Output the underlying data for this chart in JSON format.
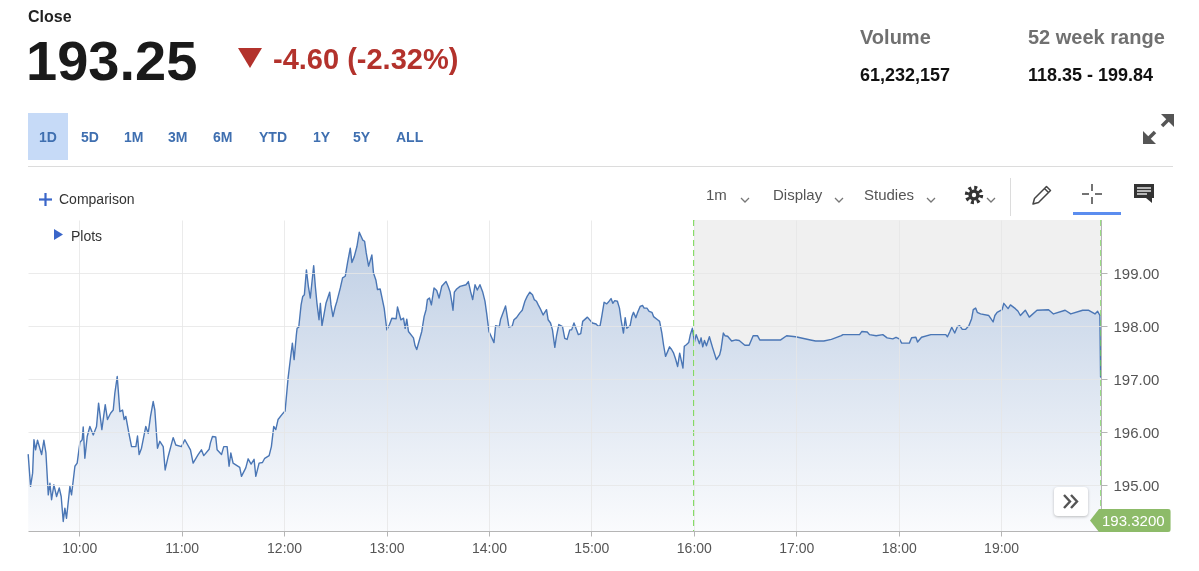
{
  "chart_data": {
    "type": "area",
    "color": "#4a76b5",
    "x": [
      9.502,
      9.525,
      9.545,
      9.558,
      9.574,
      9.593,
      9.633,
      9.655,
      9.675,
      9.698,
      9.714,
      9.73,
      9.753,
      9.779,
      9.805,
      9.824,
      9.844,
      9.86,
      9.876,
      9.909,
      9.925,
      9.958,
      9.98,
      10.007,
      10.029,
      10.039,
      10.055,
      10.078,
      10.104,
      10.137,
      10.169,
      10.189,
      10.221,
      10.254,
      10.276,
      10.306,
      10.332,
      10.348,
      10.371,
      10.397,
      10.423,
      10.439,
      10.455,
      10.488,
      10.511,
      10.553,
      10.569,
      10.585,
      10.608,
      10.65,
      10.673,
      10.696,
      10.722,
      10.738,
      10.764,
      10.787,
      10.82,
      10.839,
      10.868,
      10.917,
      10.943,
      10.998,
      11.031,
      11.086,
      11.112,
      11.161,
      11.193,
      11.216,
      11.268,
      11.281,
      11.301,
      11.333,
      11.346,
      11.389,
      11.411,
      11.444,
      11.463,
      11.48,
      11.502,
      11.567,
      11.584,
      11.626,
      11.649,
      11.678,
      11.707,
      11.724,
      11.756,
      11.789,
      11.811,
      11.854,
      11.876,
      11.899,
      11.919,
      11.941,
      11.99,
      12.01,
      12.039,
      12.062,
      12.081,
      12.098,
      12.12,
      12.127,
      12.143,
      12.166,
      12.182,
      12.198,
      12.218,
      12.237,
      12.256,
      12.289,
      12.305,
      12.321,
      12.341,
      12.354,
      12.37,
      12.386,
      12.409,
      12.445,
      12.458,
      12.477,
      12.5,
      12.516,
      12.549,
      12.571,
      12.597,
      12.62,
      12.646,
      12.662,
      12.685,
      12.711,
      12.734,
      12.769,
      12.786,
      12.802,
      12.825,
      12.857,
      12.873,
      12.896,
      12.912,
      12.938,
      12.977,
      13.003,
      13.029,
      13.052,
      13.094,
      13.107,
      13.14,
      13.166,
      13.182,
      13.198,
      13.214,
      13.263,
      13.279,
      13.295,
      13.321,
      13.344,
      13.367,
      13.386,
      13.399,
      13.419,
      13.438,
      13.464,
      13.49,
      13.513,
      13.539,
      13.581,
      13.601,
      13.62,
      13.636,
      13.649,
      13.662,
      13.685,
      13.718,
      13.776,
      13.799,
      13.821,
      13.841,
      13.864,
      13.886,
      13.912,
      13.938,
      13.961,
      13.977,
      14.0,
      14.049,
      14.065,
      14.101,
      14.114,
      14.162,
      14.195,
      14.227,
      14.244,
      14.269,
      14.302,
      14.325,
      14.351,
      14.373,
      14.399,
      14.425,
      14.442,
      14.464,
      14.481,
      14.503,
      14.529,
      14.562,
      14.578,
      14.601,
      14.62,
      14.643,
      14.659,
      14.682,
      14.718,
      14.74,
      14.763,
      14.789,
      14.807,
      14.83,
      14.873,
      14.896,
      14.915,
      14.961,
      15.01,
      15.046,
      15.065,
      15.085,
      15.101,
      15.124,
      15.15,
      15.173,
      15.192,
      15.209,
      15.228,
      15.254,
      15.274,
      15.29,
      15.313,
      15.33,
      15.346,
      15.378,
      15.395,
      15.411,
      15.434,
      15.45,
      15.476,
      15.499,
      15.515,
      15.542,
      15.564,
      15.591,
      15.607,
      15.646,
      15.666,
      15.688,
      15.705,
      15.724,
      15.744,
      15.763,
      15.783,
      15.803,
      15.822,
      15.842,
      15.862,
      15.894,
      15.907,
      15.927,
      15.95,
      15.966,
      15.986,
      16.006,
      16.023,
      16.055,
      16.071,
      16.087,
      16.104,
      16.123,
      16.152,
      16.184,
      16.22,
      16.252,
      16.265,
      16.288,
      16.304,
      16.33,
      16.369,
      16.411,
      16.443,
      16.498,
      16.54,
      16.579,
      16.621,
      16.644,
      16.686,
      16.848,
      16.906,
      16.994,
      17.139,
      17.188,
      17.269,
      17.343,
      17.44,
      17.456,
      17.618,
      17.641,
      17.693,
      17.715,
      17.78,
      17.845,
      17.887,
      17.942,
      17.974,
      18.006,
      18.029,
      18.104,
      18.126,
      18.168,
      18.184,
      18.223,
      18.314,
      18.379,
      18.46,
      18.476,
      18.498,
      18.518,
      18.547,
      18.573,
      18.595,
      18.621,
      18.654,
      18.686,
      18.712,
      18.728,
      18.751,
      18.767,
      18.799,
      18.88,
      18.922,
      18.939,
      18.961,
      19.01,
      19.026,
      19.068,
      19.091,
      19.139,
      19.165,
      19.188,
      19.236,
      19.275,
      19.35,
      19.463,
      19.511,
      19.625,
      19.68,
      19.796,
      19.851,
      19.916,
      19.942,
      19.964,
      19.971
    ],
    "values": [
      195.58,
      194.98,
      195.23,
      195.86,
      195.67,
      195.85,
      195.58,
      195.85,
      195.61,
      194.82,
      195.04,
      194.73,
      195.01,
      194.79,
      194.95,
      194.79,
      194.32,
      194.57,
      194.38,
      194.98,
      194.82,
      195.36,
      195.42,
      195.81,
      195.86,
      196.1,
      195.51,
      195.92,
      196.11,
      195.95,
      196.11,
      196.55,
      196.05,
      196.52,
      196.24,
      196.36,
      196.42,
      196.74,
      197.05,
      196.39,
      196.42,
      196.24,
      196.3,
      195.95,
      195.73,
      195.73,
      195.93,
      195.58,
      195.7,
      196.11,
      195.98,
      196.3,
      196.58,
      196.42,
      195.7,
      195.83,
      195.73,
      195.29,
      195.54,
      195.9,
      195.76,
      195.73,
      195.86,
      195.67,
      195.42,
      195.58,
      195.67,
      195.56,
      195.68,
      195.8,
      195.92,
      195.91,
      195.67,
      195.58,
      195.73,
      195.73,
      195.36,
      195.61,
      195.42,
      195.34,
      195.17,
      195.33,
      195.5,
      195.4,
      195.49,
      195.17,
      195.42,
      195.43,
      195.51,
      195.56,
      195.73,
      196.11,
      196.05,
      196.24,
      196.36,
      196.4,
      197.02,
      197.39,
      197.68,
      197.37,
      197.84,
      197.96,
      197.98,
      198.4,
      198.56,
      198.59,
      199.06,
      198.75,
      198.53,
      199.14,
      198.75,
      198.43,
      198.12,
      198.43,
      198.01,
      198.18,
      198.43,
      198.64,
      198.4,
      198.18,
      198.37,
      198.47,
      198.72,
      198.91,
      198.94,
      199.2,
      199.47,
      199.2,
      199.31,
      199.5,
      199.77,
      199.62,
      199.6,
      199.38,
      199.13,
      199.34,
      199.0,
      198.87,
      198.69,
      198.7,
      198.34,
      197.93,
      198.03,
      198.15,
      198.14,
      198.36,
      198.12,
      198.15,
      197.96,
      198.13,
      197.9,
      197.78,
      197.63,
      197.56,
      197.74,
      197.9,
      198.18,
      198.31,
      198.5,
      198.53,
      198.4,
      198.72,
      198.67,
      198.53,
      198.75,
      198.84,
      198.75,
      198.65,
      198.47,
      198.3,
      198.64,
      198.7,
      198.75,
      198.78,
      198.84,
      198.65,
      198.5,
      198.78,
      198.68,
      198.78,
      198.65,
      198.47,
      198.25,
      197.9,
      197.69,
      198.01,
      197.99,
      198.13,
      198.38,
      197.98,
      198.0,
      198.12,
      198.16,
      198.25,
      198.3,
      198.47,
      198.56,
      198.64,
      198.59,
      198.5,
      198.47,
      198.4,
      198.32,
      198.21,
      198.31,
      198.12,
      198.06,
      197.93,
      197.6,
      197.81,
      198.03,
      197.99,
      197.77,
      197.75,
      197.93,
      197.93,
      198.06,
      197.84,
      197.86,
      198.09,
      198.17,
      198.06,
      198.04,
      198.0,
      198.01,
      198.18,
      198.45,
      198.42,
      198.47,
      198.52,
      198.43,
      198.48,
      198.47,
      198.34,
      198.12,
      197.87,
      198.16,
      197.96,
      198.01,
      198.18,
      198.26,
      198.16,
      198.25,
      198.37,
      198.39,
      198.34,
      198.34,
      198.28,
      198.26,
      198.18,
      198.12,
      198.09,
      197.87,
      197.64,
      197.43,
      197.52,
      197.61,
      197.56,
      197.49,
      197.38,
      197.24,
      197.49,
      197.21,
      197.62,
      197.65,
      197.69,
      197.84,
      197.96,
      197.7,
      197.84,
      197.67,
      197.78,
      197.61,
      197.73,
      197.63,
      197.8,
      197.59,
      197.37,
      197.46,
      197.56,
      197.87,
      197.82,
      197.81,
      197.72,
      197.74,
      197.73,
      197.64,
      197.64,
      197.82,
      197.82,
      197.74,
      197.74,
      197.74,
      197.82,
      197.8,
      197.74,
      197.72,
      197.72,
      197.75,
      197.82,
      197.84,
      197.84,
      197.9,
      197.89,
      197.84,
      197.82,
      197.84,
      197.78,
      197.76,
      197.79,
      197.76,
      197.68,
      197.68,
      197.78,
      197.79,
      197.7,
      197.79,
      197.84,
      197.84,
      197.84,
      197.8,
      197.89,
      197.98,
      197.87,
      197.99,
      198.01,
      197.94,
      197.94,
      198.01,
      198.14,
      198.31,
      198.34,
      198.26,
      198.23,
      198.2,
      198.08,
      198.2,
      198.26,
      198.31,
      198.43,
      198.33,
      198.4,
      198.33,
      198.28,
      198.2,
      198.3,
      198.17,
      198.3,
      198.31,
      198.23,
      198.3,
      198.23,
      198.3,
      198.3,
      198.23,
      198.28,
      198.2,
      197.04
    ],
    "xlim": [
      9.5,
      19.975
    ],
    "xticks": [
      {
        "value": 10,
        "label": "10:00"
      },
      {
        "value": 11,
        "label": "11:00"
      },
      {
        "value": 12,
        "label": "12:00"
      },
      {
        "value": 13,
        "label": "13:00"
      },
      {
        "value": 14,
        "label": "14:00"
      },
      {
        "value": 15,
        "label": "15:00"
      },
      {
        "value": 16,
        "label": "16:00"
      },
      {
        "value": 17,
        "label": "17:00"
      },
      {
        "value": 18,
        "label": "18:00"
      },
      {
        "value": 19,
        "label": "19:00"
      }
    ],
    "ylim": [
      194.14,
      200
    ],
    "yticks": [
      {
        "value": 195,
        "label": "195.00"
      },
      {
        "value": 196,
        "label": "196.00"
      },
      {
        "value": 197,
        "label": "197.00"
      },
      {
        "value": 198,
        "label": "198.00"
      },
      {
        "value": 199,
        "label": "199.00"
      }
    ],
    "grid": true,
    "bands": [
      {
        "axis": "x",
        "from": 16,
        "to": 19.975,
        "color": "#f0f0f0"
      }
    ],
    "ref_lines": [
      {
        "axis": "x",
        "value": 16,
        "color": "#6fd64a",
        "line_style": "dashed"
      },
      {
        "axis": "x",
        "value": 19.975,
        "color": "#6fd64a",
        "line_style": "dashed"
      }
    ],
    "annotations": [
      "Close",
      "193.25",
      "-4.60 (-2.32%)",
      "Volume",
      "61,232,157",
      "52 week range",
      "118.35 - 199.84",
      "1D",
      "5D",
      "1M",
      "3M",
      "6M",
      "YTD",
      "1Y",
      "5Y",
      "ALL",
      "Comparison",
      "Plots",
      "1m",
      "Display",
      "Studies",
      "193.3200"
    ]
  }
}
